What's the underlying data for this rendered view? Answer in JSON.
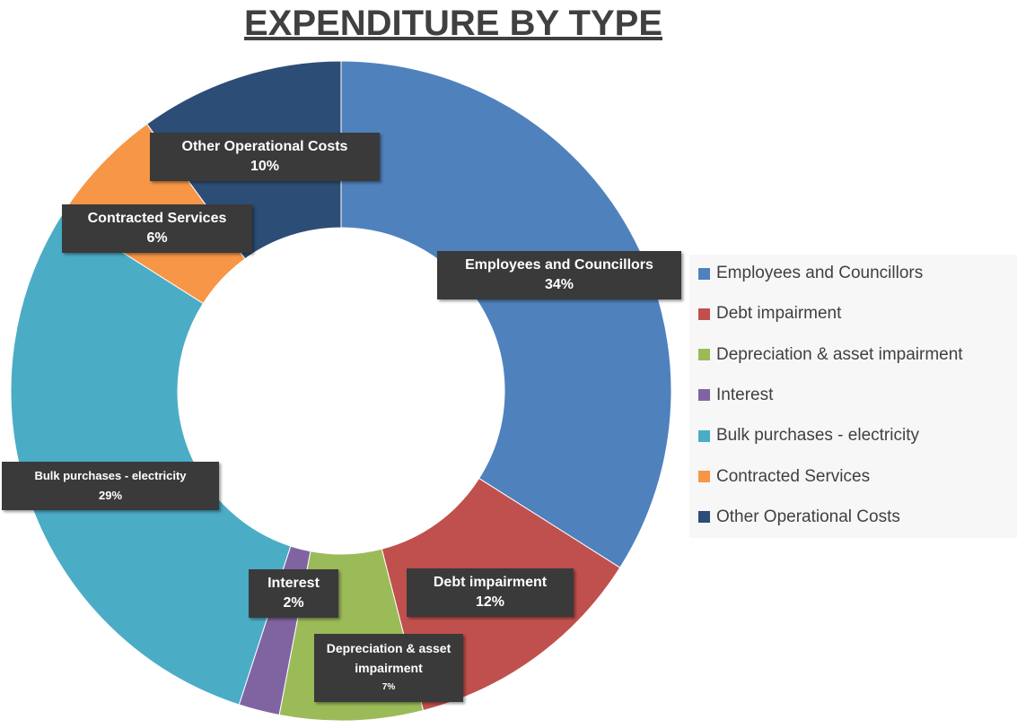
{
  "chart_data": {
    "type": "donut",
    "title": "EXPENDITURE BY TYPE",
    "categories": [
      "Employees and Councillors",
      "Debt impairment",
      "Depreciation & asset impairment",
      "Interest",
      "Bulk purchases - electricity",
      "Contracted Services",
      "Other Operational Costs"
    ],
    "values": [
      34,
      12,
      7,
      2,
      29,
      6,
      10
    ],
    "value_labels": [
      "34%",
      "12%",
      "7%",
      "2%",
      "29%",
      "6%",
      "10%"
    ],
    "colors": [
      "#4f81bd",
      "#c0504d",
      "#9bbb59",
      "#8064a2",
      "#4bacc6",
      "#f79646",
      "#2c4d75"
    ],
    "legend": "right"
  }
}
